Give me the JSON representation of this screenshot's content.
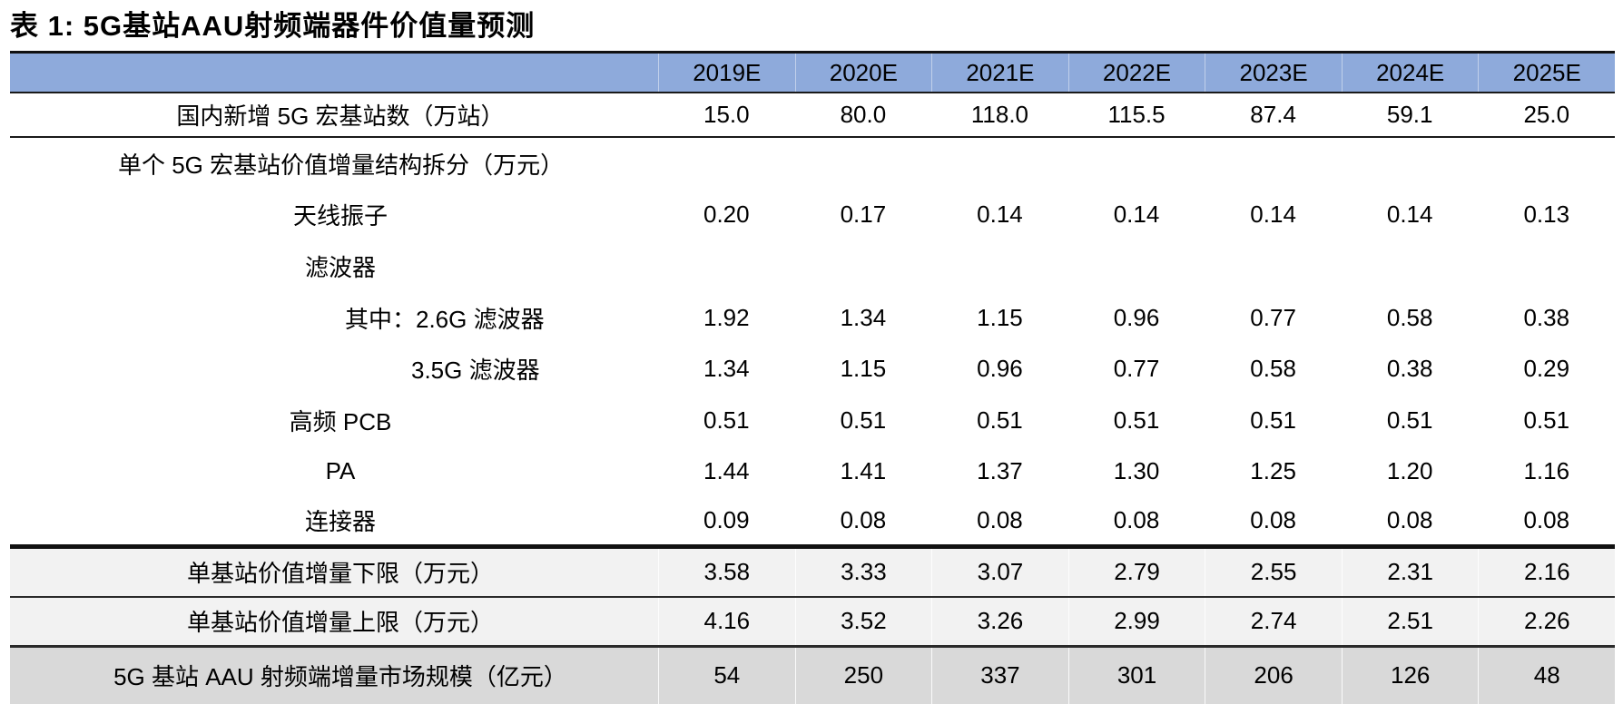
{
  "title": "表 1: 5G基站AAU射频端器件价值量预测",
  "colors": {
    "header_bg": "#8EAADB",
    "summary_row_bg": "#F2F2F2",
    "total_row_bg": "#D9D9D9",
    "rule_line": "#1a1a1a"
  },
  "table": {
    "columns": [
      "2019E",
      "2020E",
      "2021E",
      "2022E",
      "2023E",
      "2024E",
      "2025E"
    ],
    "rows": [
      {
        "label": "国内新增 5G 宏基站数（万站）",
        "indent_level": 0,
        "style": "first",
        "values": [
          "15.0",
          "80.0",
          "118.0",
          "115.5",
          "87.4",
          "59.1",
          "25.0"
        ]
      },
      {
        "label": "单个 5G 宏基站价值增量结构拆分（万元）",
        "indent_level": 1,
        "style": "plain",
        "values": [
          "",
          "",
          "",
          "",
          "",
          "",
          ""
        ]
      },
      {
        "label": "天线振子",
        "indent_level": 0,
        "style": "plain",
        "values": [
          "0.20",
          "0.17",
          "0.14",
          "0.14",
          "0.14",
          "0.14",
          "0.13"
        ]
      },
      {
        "label": "滤波器",
        "indent_level": 0,
        "style": "plain",
        "values": [
          "",
          "",
          "",
          "",
          "",
          "",
          ""
        ]
      },
      {
        "label": "其中：2.6G 滤波器",
        "indent_level": 2,
        "style": "plain",
        "values": [
          "1.92",
          "1.34",
          "1.15",
          "0.96",
          "0.77",
          "0.58",
          "0.38"
        ]
      },
      {
        "label": "3.5G 滤波器",
        "indent_level": 3,
        "style": "plain",
        "values": [
          "1.34",
          "1.15",
          "0.96",
          "0.77",
          "0.58",
          "0.38",
          "0.29"
        ]
      },
      {
        "label": "高频 PCB",
        "indent_level": 0,
        "style": "plain",
        "values": [
          "0.51",
          "0.51",
          "0.51",
          "0.51",
          "0.51",
          "0.51",
          "0.51"
        ]
      },
      {
        "label": "PA",
        "indent_level": 0,
        "style": "plain",
        "values": [
          "1.44",
          "1.41",
          "1.37",
          "1.30",
          "1.25",
          "1.20",
          "1.16"
        ]
      },
      {
        "label": "连接器",
        "indent_level": 0,
        "style": "last_component",
        "values": [
          "0.09",
          "0.08",
          "0.08",
          "0.08",
          "0.08",
          "0.08",
          "0.08"
        ]
      },
      {
        "label": "单基站价值增量下限（万元）",
        "indent_level": 0,
        "style": "summary",
        "values": [
          "3.58",
          "3.33",
          "3.07",
          "2.79",
          "2.55",
          "2.31",
          "2.16"
        ]
      },
      {
        "label": "单基站价值增量上限（万元）",
        "indent_level": 0,
        "style": "summary_last",
        "values": [
          "4.16",
          "3.52",
          "3.26",
          "2.99",
          "2.74",
          "2.51",
          "2.26"
        ]
      },
      {
        "label": "5G 基站 AAU 射频端增量市场规模（亿元）",
        "indent_level": 0,
        "style": "total",
        "values": [
          "54",
          "250",
          "337",
          "301",
          "206",
          "126",
          "48"
        ]
      }
    ]
  }
}
